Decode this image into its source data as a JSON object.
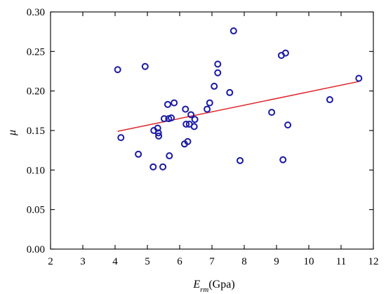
{
  "chart_data": {
    "type": "scatter",
    "xlabel": {
      "symbol": "E",
      "subscript": "rm",
      "unit": "(Gpa)"
    },
    "ylabel": "μ",
    "xlim": [
      2,
      12
    ],
    "ylim": [
      0.0,
      0.3
    ],
    "xticks": [
      2,
      3,
      4,
      5,
      6,
      7,
      8,
      9,
      10,
      11,
      12
    ],
    "xtick_labels": [
      "2",
      "3",
      "4",
      "5",
      "6",
      "7",
      "8",
      "9",
      "10",
      "11",
      "12"
    ],
    "yticks": [
      0.0,
      0.05,
      0.1,
      0.15,
      0.2,
      0.25,
      0.3
    ],
    "ytick_labels": [
      "0.00",
      "0.05",
      "0.10",
      "0.15",
      "0.20",
      "0.25",
      "0.30"
    ],
    "grid": false,
    "legend": "none",
    "marker_color": "#1a1aa6",
    "fit_color": "#e0262b",
    "points": [
      {
        "x": 4.08,
        "y": 0.227
      },
      {
        "x": 4.18,
        "y": 0.141
      },
      {
        "x": 4.72,
        "y": 0.12
      },
      {
        "x": 4.93,
        "y": 0.231
      },
      {
        "x": 5.18,
        "y": 0.104
      },
      {
        "x": 5.2,
        "y": 0.15
      },
      {
        "x": 5.32,
        "y": 0.153
      },
      {
        "x": 5.34,
        "y": 0.147
      },
      {
        "x": 5.35,
        "y": 0.143
      },
      {
        "x": 5.48,
        "y": 0.104
      },
      {
        "x": 5.52,
        "y": 0.165
      },
      {
        "x": 5.63,
        "y": 0.183
      },
      {
        "x": 5.66,
        "y": 0.165
      },
      {
        "x": 5.68,
        "y": 0.118
      },
      {
        "x": 5.74,
        "y": 0.166
      },
      {
        "x": 5.83,
        "y": 0.185
      },
      {
        "x": 6.15,
        "y": 0.133
      },
      {
        "x": 6.18,
        "y": 0.177
      },
      {
        "x": 6.2,
        "y": 0.158
      },
      {
        "x": 6.25,
        "y": 0.136
      },
      {
        "x": 6.3,
        "y": 0.158
      },
      {
        "x": 6.35,
        "y": 0.17
      },
      {
        "x": 6.45,
        "y": 0.155
      },
      {
        "x": 6.47,
        "y": 0.164
      },
      {
        "x": 6.85,
        "y": 0.177
      },
      {
        "x": 6.93,
        "y": 0.185
      },
      {
        "x": 7.07,
        "y": 0.206
      },
      {
        "x": 7.18,
        "y": 0.234
      },
      {
        "x": 7.18,
        "y": 0.223
      },
      {
        "x": 7.55,
        "y": 0.198
      },
      {
        "x": 7.67,
        "y": 0.276
      },
      {
        "x": 7.87,
        "y": 0.112
      },
      {
        "x": 8.85,
        "y": 0.173
      },
      {
        "x": 9.15,
        "y": 0.245
      },
      {
        "x": 9.2,
        "y": 0.113
      },
      {
        "x": 9.28,
        "y": 0.248
      },
      {
        "x": 9.35,
        "y": 0.157
      },
      {
        "x": 10.65,
        "y": 0.189
      },
      {
        "x": 11.55,
        "y": 0.216
      }
    ],
    "fit_line": {
      "x": [
        4.08,
        11.55
      ],
      "y": [
        0.149,
        0.212
      ]
    }
  }
}
